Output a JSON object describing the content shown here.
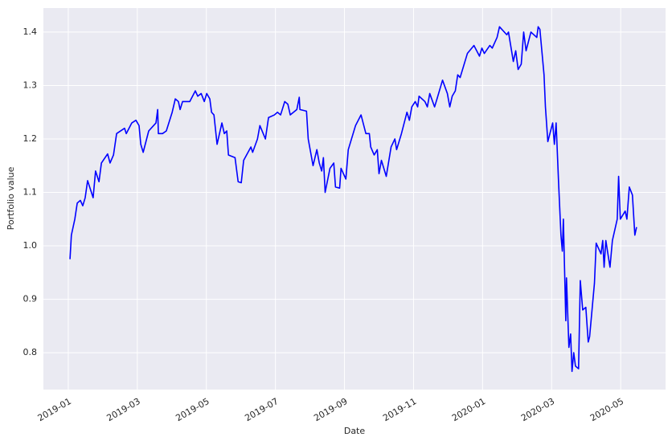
{
  "chart_data": {
    "type": "line",
    "xlabel": "Date",
    "ylabel": "Portfolio value",
    "color": "#0000ff",
    "grid": true,
    "x": [
      0.05,
      0.09,
      0.19,
      0.26,
      0.35,
      0.42,
      0.49,
      0.56,
      0.72,
      0.79,
      0.89,
      0.96,
      1.14,
      1.21,
      1.31,
      1.4,
      1.63,
      1.68,
      1.84,
      1.96,
      2.05,
      2.1,
      2.17,
      2.33,
      2.54,
      2.59,
      2.61,
      2.73,
      2.84,
      3.01,
      3.1,
      3.19,
      3.24,
      3.31,
      3.52,
      3.68,
      3.75,
      3.85,
      3.94,
      4.01,
      4.1,
      4.15,
      4.22,
      4.31,
      4.45,
      4.52,
      4.59,
      4.64,
      4.83,
      4.92,
      5.01,
      5.08,
      5.29,
      5.34,
      5.48,
      5.55,
      5.71,
      5.8,
      5.97,
      6.06,
      6.15,
      6.27,
      6.36,
      6.43,
      6.62,
      6.69,
      6.71,
      6.9,
      6.95,
      7.09,
      7.2,
      7.27,
      7.34,
      7.39,
      7.44,
      7.58,
      7.69,
      7.74,
      7.86,
      7.9,
      8.04,
      8.11,
      8.32,
      8.48,
      8.62,
      8.72,
      8.76,
      8.86,
      8.95,
      9.0,
      9.07,
      9.21,
      9.35,
      9.46,
      9.51,
      9.65,
      9.81,
      9.88,
      9.95,
      10.05,
      10.12,
      10.16,
      10.33,
      10.4,
      10.47,
      10.61,
      10.68,
      10.84,
      10.98,
      11.05,
      11.12,
      11.21,
      11.28,
      11.35,
      11.56,
      11.75,
      11.91,
      11.98,
      12.05,
      12.21,
      12.28,
      12.42,
      12.49,
      12.7,
      12.75,
      12.89,
      12.96,
      13.03,
      13.12,
      13.19,
      13.26,
      13.4,
      13.57,
      13.61,
      13.66,
      13.78,
      13.82,
      13.89,
      14.03,
      14.08,
      14.13,
      14.2,
      14.27,
      14.31,
      14.34,
      14.41,
      14.43,
      14.5,
      14.55,
      14.59,
      14.64,
      14.69,
      14.78,
      14.83,
      14.9,
      14.99,
      15.06,
      15.1,
      15.24,
      15.29,
      15.43,
      15.48,
      15.52,
      15.57,
      15.69,
      15.76,
      15.9,
      15.94,
      15.99,
      16.13,
      16.18,
      16.25,
      16.34,
      16.41,
      16.46
    ],
    "values": [
      0.975,
      1.02,
      1.05,
      1.08,
      1.085,
      1.075,
      1.09,
      1.122,
      1.09,
      1.14,
      1.12,
      1.155,
      1.172,
      1.155,
      1.17,
      1.21,
      1.22,
      1.21,
      1.23,
      1.235,
      1.225,
      1.19,
      1.175,
      1.215,
      1.23,
      1.255,
      1.21,
      1.21,
      1.215,
      1.25,
      1.275,
      1.27,
      1.255,
      1.27,
      1.27,
      1.29,
      1.28,
      1.285,
      1.27,
      1.285,
      1.275,
      1.25,
      1.245,
      1.19,
      1.23,
      1.21,
      1.215,
      1.17,
      1.165,
      1.12,
      1.118,
      1.16,
      1.185,
      1.175,
      1.2,
      1.225,
      1.2,
      1.24,
      1.245,
      1.25,
      1.245,
      1.27,
      1.265,
      1.245,
      1.255,
      1.278,
      1.255,
      1.252,
      1.2,
      1.15,
      1.18,
      1.155,
      1.14,
      1.165,
      1.1,
      1.145,
      1.155,
      1.11,
      1.108,
      1.145,
      1.125,
      1.18,
      1.225,
      1.245,
      1.21,
      1.21,
      1.185,
      1.17,
      1.18,
      1.135,
      1.16,
      1.13,
      1.185,
      1.2,
      1.18,
      1.21,
      1.25,
      1.235,
      1.26,
      1.27,
      1.26,
      1.28,
      1.27,
      1.26,
      1.285,
      1.26,
      1.275,
      1.31,
      1.285,
      1.26,
      1.28,
      1.29,
      1.32,
      1.315,
      1.36,
      1.375,
      1.355,
      1.37,
      1.36,
      1.375,
      1.37,
      1.39,
      1.41,
      1.395,
      1.4,
      1.345,
      1.365,
      1.33,
      1.34,
      1.4,
      1.365,
      1.4,
      1.39,
      1.41,
      1.405,
      1.32,
      1.26,
      1.195,
      1.23,
      1.19,
      1.23,
      1.12,
      1.02,
      0.99,
      1.05,
      0.86,
      0.94,
      0.81,
      0.835,
      0.765,
      0.8,
      0.775,
      0.77,
      0.935,
      0.88,
      0.885,
      0.82,
      0.83,
      0.93,
      1.005,
      0.985,
      1.01,
      0.96,
      1.01,
      0.96,
      1.01,
      1.05,
      1.13,
      1.05,
      1.065,
      1.05,
      1.11,
      1.095,
      1.02,
      1.035
    ],
    "xlim": [
      -0.72,
      17.3
    ],
    "xticks": [
      {
        "value": 0,
        "label": "2019-01"
      },
      {
        "value": 2,
        "label": "2019-03"
      },
      {
        "value": 4,
        "label": "2019-05"
      },
      {
        "value": 6,
        "label": "2019-07"
      },
      {
        "value": 8,
        "label": "2019-09"
      },
      {
        "value": 10,
        "label": "2019-11"
      },
      {
        "value": 12,
        "label": "2020-01"
      },
      {
        "value": 14,
        "label": "2020-03"
      },
      {
        "value": 16,
        "label": "2020-05"
      }
    ],
    "ylim": [
      0.731,
      1.445
    ],
    "yticks": [
      0.8,
      0.9,
      {
        "value": 1,
        "label": "1.0"
      },
      1.1,
      1.2,
      1.3,
      1.4
    ]
  }
}
